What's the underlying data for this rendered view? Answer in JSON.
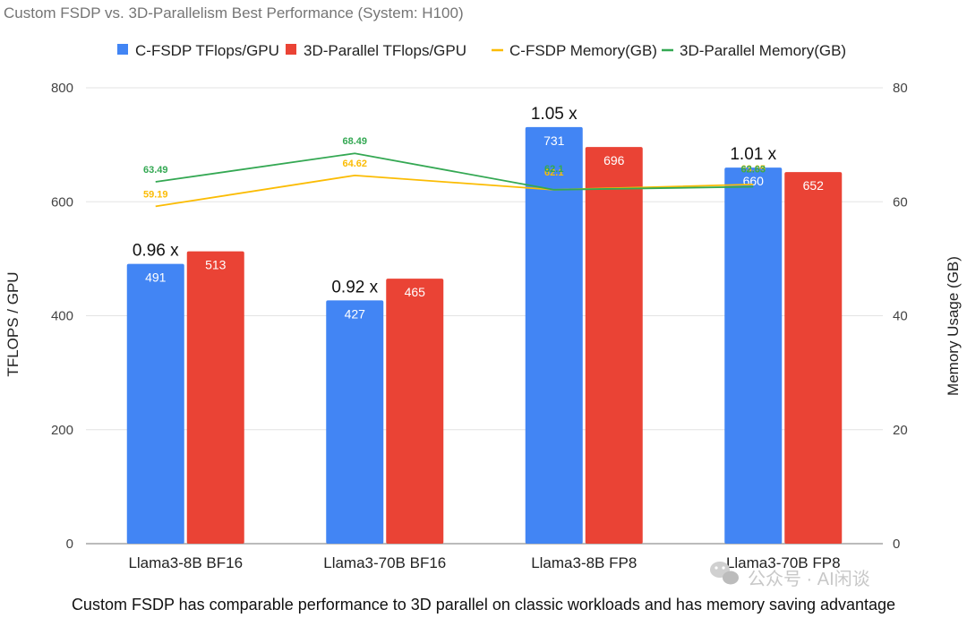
{
  "chart_data": {
    "type": "bar",
    "title": "Custom FSDP vs. 3D-Parallelism Best Performance (System: H100)",
    "categories": [
      "Llama3-8B BF16",
      "Llama3-70B BF16",
      "Llama3-8B FP8",
      "Llama3-70B FP8"
    ],
    "series": [
      {
        "name": "C-FSDP TFlops/GPU",
        "kind": "bar",
        "axis": "left",
        "color": "#4285f4",
        "values": [
          491,
          427,
          731,
          660
        ]
      },
      {
        "name": "3D-Parallel TFlops/GPU",
        "kind": "bar",
        "axis": "left",
        "color": "#ea4335",
        "values": [
          513,
          465,
          696,
          652
        ]
      },
      {
        "name": "C-FSDP Memory(GB)",
        "kind": "line",
        "axis": "right",
        "color": "#fbbc04",
        "values": [
          59.19,
          64.62,
          62.1,
          63.05
        ]
      },
      {
        "name": "3D-Parallel Memory(GB)",
        "kind": "line",
        "axis": "right",
        "color": "#34a853",
        "values": [
          63.49,
          68.49,
          62.11,
          62.63
        ]
      }
    ],
    "value_labels": {
      "c_fsdp_memory": [
        "59.19",
        "64.62",
        "62.1",
        "63.05"
      ],
      "parallel_memory": [
        "63.49",
        "68.49",
        "62.1",
        "62.63"
      ]
    },
    "ratios": [
      "0.96 x",
      "0.92 x",
      "1.05 x",
      "1.01 x"
    ],
    "ylabel": "TFLOPS / GPU",
    "y2label": "Memory Usage (GB)",
    "ylim": [
      0,
      800
    ],
    "y2lim": [
      0,
      80
    ],
    "yticks": [
      0,
      200,
      400,
      600,
      800
    ],
    "y2ticks": [
      0,
      20,
      40,
      60,
      80
    ],
    "legend_position": "top"
  },
  "caption": "Custom FSDP has comparable performance to 3D parallel on classic workloads and has memory saving advantage",
  "watermark": "公众号 · AI闲谈"
}
